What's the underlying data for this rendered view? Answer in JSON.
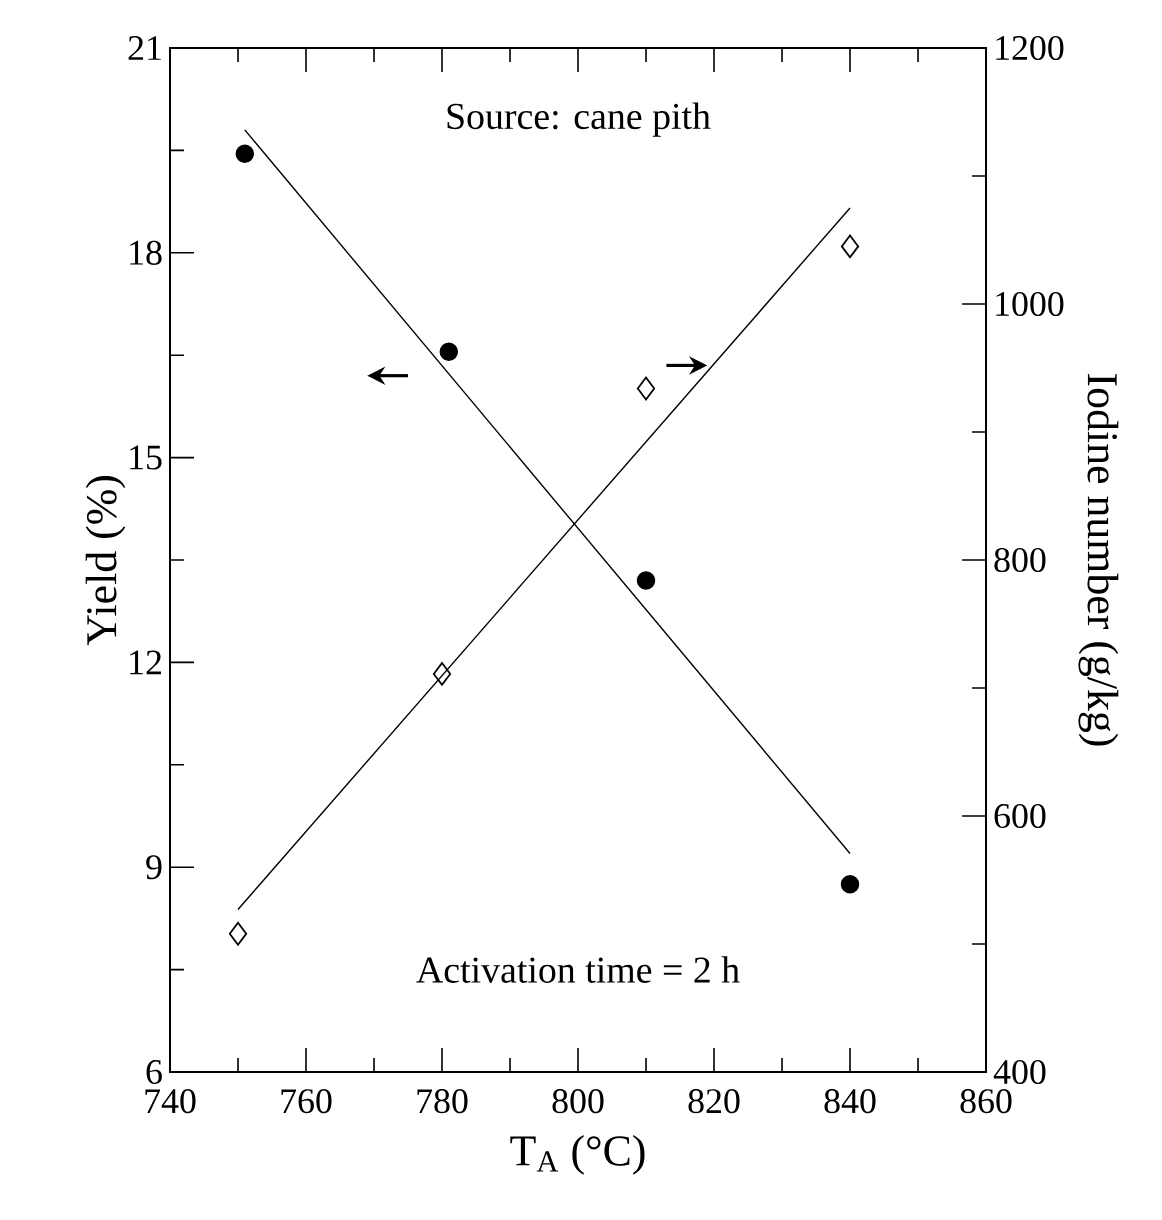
{
  "chart_data": {
    "type": "scatter",
    "xlabel": "T$_{A}$  (°C)",
    "ylabel": "Yield  (%)",
    "y2label": "Iodine number  (g/kg)",
    "xlim": [
      740,
      860
    ],
    "xticks": [
      740,
      760,
      780,
      800,
      820,
      840,
      860
    ],
    "ylim": [
      6,
      21
    ],
    "yticks": [
      6,
      9,
      12,
      15,
      18,
      21
    ],
    "y2lim": [
      400,
      1200
    ],
    "y2ticks": [
      400,
      600,
      800,
      1000,
      1200
    ],
    "annotations": [
      "Source: cane pith",
      "Activation time = 2 h"
    ],
    "series": [
      {
        "marker": "circle",
        "color": "#000000",
        "x": [
          751,
          781,
          810,
          840
        ],
        "values": [
          19.45,
          16.55,
          13.2,
          8.75
        ]
      },
      {
        "marker": "diamond",
        "color": "#000000",
        "axis": "y2",
        "x": [
          750,
          780,
          810,
          840
        ],
        "values": [
          508,
          711,
          934,
          1045
        ]
      },
      {
        "type": "line",
        "color": "#000000",
        "x": [
          751,
          840
        ],
        "values": [
          19.8,
          9.2
        ]
      },
      {
        "type": "line",
        "color": "#000000",
        "axis": "y2",
        "x": [
          750,
          840
        ],
        "values": [
          527,
          1075
        ]
      }
    ]
  }
}
